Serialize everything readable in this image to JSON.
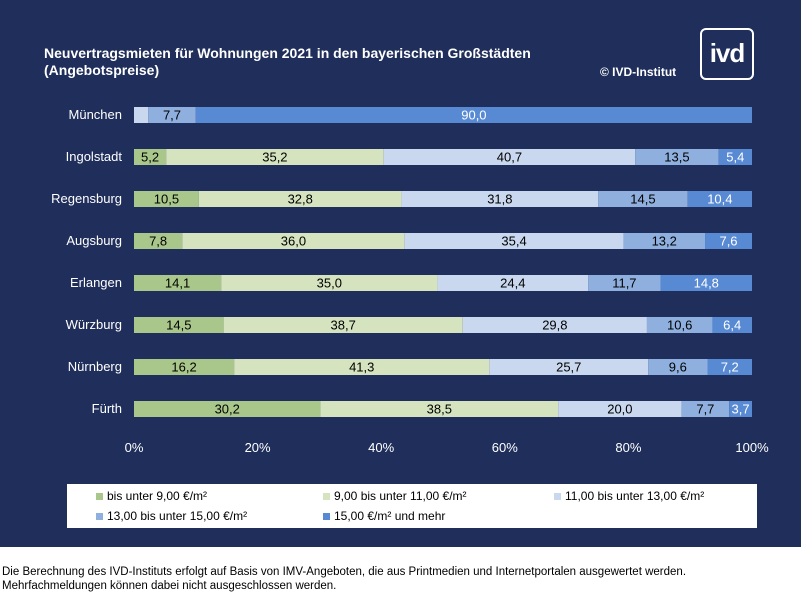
{
  "header": {
    "title_line1": "Neuvertragsmieten für Wohnungen 2021 in den bayerischen Großstädten",
    "title_line2": "(Angebotspreise)",
    "copyright": "© IVD-Institut",
    "logo_text": "ivd"
  },
  "colors": {
    "background": "#1f2e5a",
    "series": [
      "#a9c78a",
      "#d5e3bf",
      "#c9d8ef",
      "#8fb0de",
      "#5889d3"
    ]
  },
  "chart_data": {
    "type": "bar",
    "orientation": "horizontal",
    "stacked": "percent",
    "categories": [
      "München",
      "Ingolstadt",
      "Regensburg",
      "Augsburg",
      "Erlangen",
      "Würzburg",
      "Nürnberg",
      "Fürth"
    ],
    "series": [
      {
        "name": "bis unter 9,00 €/m²",
        "values": [
          0,
          5.2,
          10.5,
          7.8,
          14.1,
          14.5,
          16.2,
          30.2
        ],
        "labels": [
          "",
          "5,2",
          "10,5",
          "7,8",
          "14,1",
          "14,5",
          "16,2",
          "30,2"
        ]
      },
      {
        "name": "9,00 bis unter 11,00 €/m²",
        "values": [
          0,
          35.2,
          32.8,
          36.0,
          35.0,
          38.7,
          41.3,
          38.5
        ],
        "labels": [
          "",
          "35,2",
          "32,8",
          "36,0",
          "35,0",
          "38,7",
          "41,3",
          "38,5"
        ]
      },
      {
        "name": "11,00 bis unter 13,00 €/m²",
        "values": [
          2.3,
          40.7,
          31.8,
          35.4,
          24.4,
          29.8,
          25.7,
          20.0
        ],
        "labels": [
          "",
          "40,7",
          "31,8",
          "35,4",
          "24,4",
          "29,8",
          "25,7",
          "20,0"
        ]
      },
      {
        "name": "13,00 bis unter 15,00 €/m²",
        "values": [
          7.7,
          13.5,
          14.5,
          13.2,
          11.7,
          10.6,
          9.6,
          7.7
        ],
        "labels": [
          "7,7",
          "13,5",
          "14,5",
          "13,2",
          "11,7",
          "10,6",
          "9,6",
          "7,7"
        ]
      },
      {
        "name": "15,00 €/m² und mehr",
        "values": [
          90.0,
          5.4,
          10.4,
          7.6,
          14.8,
          6.4,
          7.2,
          3.7
        ],
        "labels": [
          "90,0",
          "5,4",
          "10,4",
          "7,6",
          "14,8",
          "6,4",
          "7,2",
          "3,7"
        ]
      }
    ],
    "xlim": [
      0,
      100
    ],
    "xticks": [
      "0%",
      "20%",
      "40%",
      "60%",
      "80%",
      "100%"
    ],
    "grid": false,
    "legend_position": "bottom"
  },
  "footnote": {
    "line1": "Die Berechnung des IVD-Instituts erfolgt auf Basis von IMV-Angeboten, die aus Printmedien und Internetportalen ausgewertet werden.",
    "line2": "Mehrfachmeldungen können dabei nicht ausgeschlossen werden."
  }
}
